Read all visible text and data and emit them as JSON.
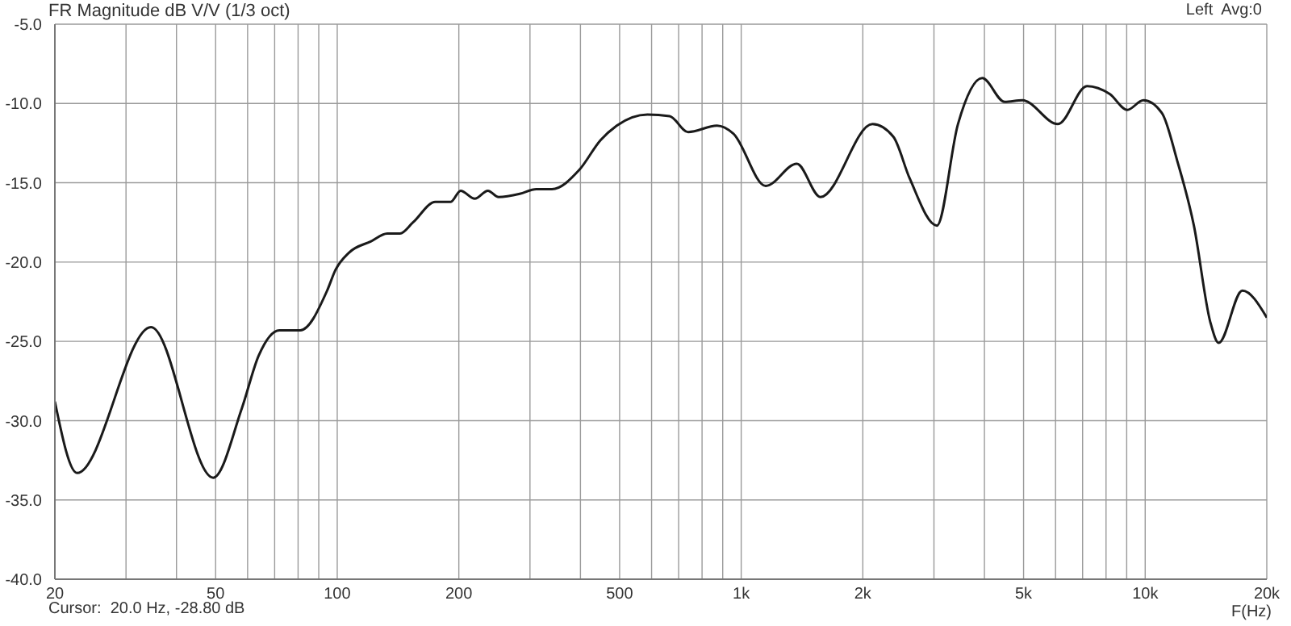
{
  "chart_data": {
    "type": "line",
    "title": "FR Magnitude dB V/V (1/3 oct)",
    "xlabel": "F(Hz)",
    "annotations": [
      "Left  Avg:0",
      "Cursor:  20.0 Hz, -28.80 dB"
    ],
    "log": "x",
    "grid": true,
    "marker": "none",
    "line_style": "solid",
    "xlim": [
      20,
      20000
    ],
    "ylim": [
      -40,
      -5
    ],
    "xticks": [
      20,
      {
        "value": 30,
        "label": null
      },
      {
        "value": 40,
        "label": null
      },
      50,
      {
        "value": 60,
        "label": null
      },
      {
        "value": 70,
        "label": null
      },
      {
        "value": 80,
        "label": null
      },
      {
        "value": 90,
        "label": null
      },
      100,
      200,
      {
        "value": 300,
        "label": null
      },
      {
        "value": 400,
        "label": null
      },
      500,
      {
        "value": 600,
        "label": null
      },
      {
        "value": 700,
        "label": null
      },
      {
        "value": 800,
        "label": null
      },
      {
        "value": 900,
        "label": null
      },
      {
        "value": 1000,
        "label": "1k"
      },
      {
        "value": 2000,
        "label": "2k"
      },
      {
        "value": 3000,
        "label": null
      },
      {
        "value": 4000,
        "label": null
      },
      {
        "value": 5000,
        "label": "5k"
      },
      {
        "value": 6000,
        "label": null
      },
      {
        "value": 7000,
        "label": null
      },
      {
        "value": 8000,
        "label": null
      },
      {
        "value": 9000,
        "label": null
      },
      {
        "value": 10000,
        "label": "10k"
      },
      {
        "value": 20000,
        "label": "20k"
      }
    ],
    "yticks": [
      {
        "value": -40,
        "label": "-40.0"
      },
      {
        "value": -35,
        "label": "-35.0"
      },
      {
        "value": -30,
        "label": "-30.0"
      },
      {
        "value": -25,
        "label": "-25.0"
      },
      {
        "value": -20,
        "label": "-20.0"
      },
      {
        "value": -15,
        "label": "-15.0"
      },
      {
        "value": -10,
        "label": "-10.0"
      },
      {
        "value": -5,
        "label": "-5.0"
      }
    ],
    "x": [
      20,
      22.7,
      34.6,
      49.3,
      58.1,
      63.9,
      71.9,
      81,
      94.4,
      99,
      107,
      121,
      133,
      143,
      154,
      175,
      191,
      202,
      219,
      236,
      251,
      283,
      311,
      340,
      397,
      449,
      492,
      586,
      665,
      739,
      871,
      956,
      1150,
      1373,
      1571,
      2113,
      2380,
      2610,
      3050,
      3440,
      3950,
      4490,
      4970,
      6080,
      7180,
      8170,
      9030,
      9900,
      11000,
      12000,
      13200,
      14500,
      15200,
      17400,
      20000
    ],
    "series": [
      {
        "color": "#1a1a1a",
        "values": [
          -28.8,
          -33.3,
          -24.1,
          -33.6,
          -29.2,
          -25.9,
          -24.3,
          -24.3,
          -21.8,
          -20.5,
          -19.4,
          -18.7,
          -18.2,
          -18.2,
          -17.5,
          -16.2,
          -16.2,
          -15.5,
          -16.0,
          -15.5,
          -15.9,
          -15.7,
          -15.4,
          -15.4,
          -14.2,
          -12.3,
          -11.4,
          -10.7,
          -10.8,
          -11.8,
          -11.4,
          -11.9,
          -15.2,
          -13.8,
          -15.9,
          -11.3,
          -12.1,
          -14.7,
          -17.7,
          -11.3,
          -8.4,
          -9.9,
          -9.8,
          -11.3,
          -8.9,
          -9.4,
          -10.4,
          -9.8,
          -10.6,
          -13.6,
          -17.7,
          -23.8,
          -25.1,
          -21.8,
          -23.5
        ]
      }
    ]
  }
}
